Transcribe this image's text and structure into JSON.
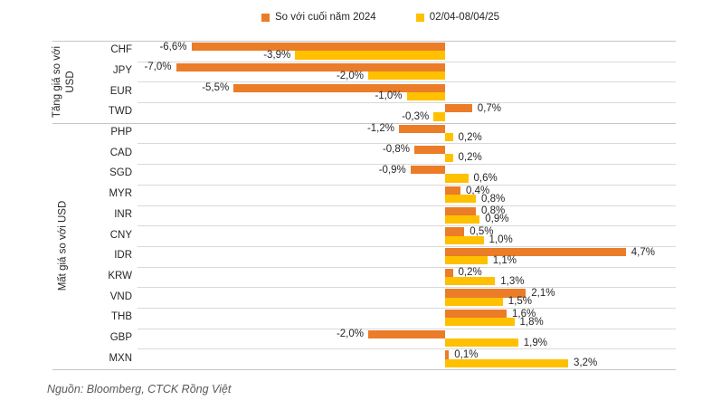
{
  "colors": {
    "series1": "#EB7C28",
    "series2": "#FFC000",
    "gridline": "#D9D9D9",
    "axis_line": "#C6C6C6",
    "text": "#26262B",
    "source_text": "#595959"
  },
  "chart_data": {
    "type": "bar",
    "orientation": "horizontal",
    "title": "",
    "xlabel": "",
    "ylabel": "",
    "xlim": [
      -8,
      6
    ],
    "grid": "row-separators",
    "legend_position": "top",
    "categories": [
      "CHF",
      "JPY",
      "EUR",
      "TWD",
      "PHP",
      "CAD",
      "SGD",
      "MYR",
      "INR",
      "CNY",
      "IDR",
      "KRW",
      "VND",
      "THB",
      "GBP",
      "MXN"
    ],
    "groups": [
      {
        "label": "Tăng giá so với USD",
        "span": [
          0,
          3
        ]
      },
      {
        "label": "Mất giá so với USD",
        "span": [
          4,
          15
        ]
      }
    ],
    "series": [
      {
        "name": "So với cuối năm 2024",
        "color": "#EB7C28",
        "values": [
          -6.6,
          -7.0,
          -5.5,
          0.7,
          -1.2,
          -0.8,
          -0.9,
          0.4,
          0.8,
          0.5,
          4.7,
          0.2,
          2.1,
          1.6,
          -2.0,
          0.1
        ],
        "labels": [
          "-6,6%",
          "-7,0%",
          "-5,5%",
          "0,7%",
          "-1,2%",
          "-0,8%",
          "-0,9%",
          "0,4%",
          "0,8%",
          "0,5%",
          "4,7%",
          "0,2%",
          "2,1%",
          "1,6%",
          "-2,0%",
          "0,1%"
        ]
      },
      {
        "name": "02/04-08/04/25",
        "color": "#FFC000",
        "values": [
          -3.9,
          -2.0,
          -1.0,
          -0.3,
          0.2,
          0.2,
          0.6,
          0.8,
          0.9,
          1.0,
          1.1,
          1.3,
          1.5,
          1.8,
          1.9,
          3.2
        ],
        "labels": [
          "-3,9%",
          "-2,0%",
          "-1,0%",
          "-0,3%",
          "0,2%",
          "0,2%",
          "0,6%",
          "0,8%",
          "0,9%",
          "1,0%",
          "1,1%",
          "1,3%",
          "1,5%",
          "1,8%",
          "1,9%",
          "3,2%"
        ]
      }
    ]
  },
  "source": "Nguồn: Bloomberg, CTCK Rồng Việt"
}
